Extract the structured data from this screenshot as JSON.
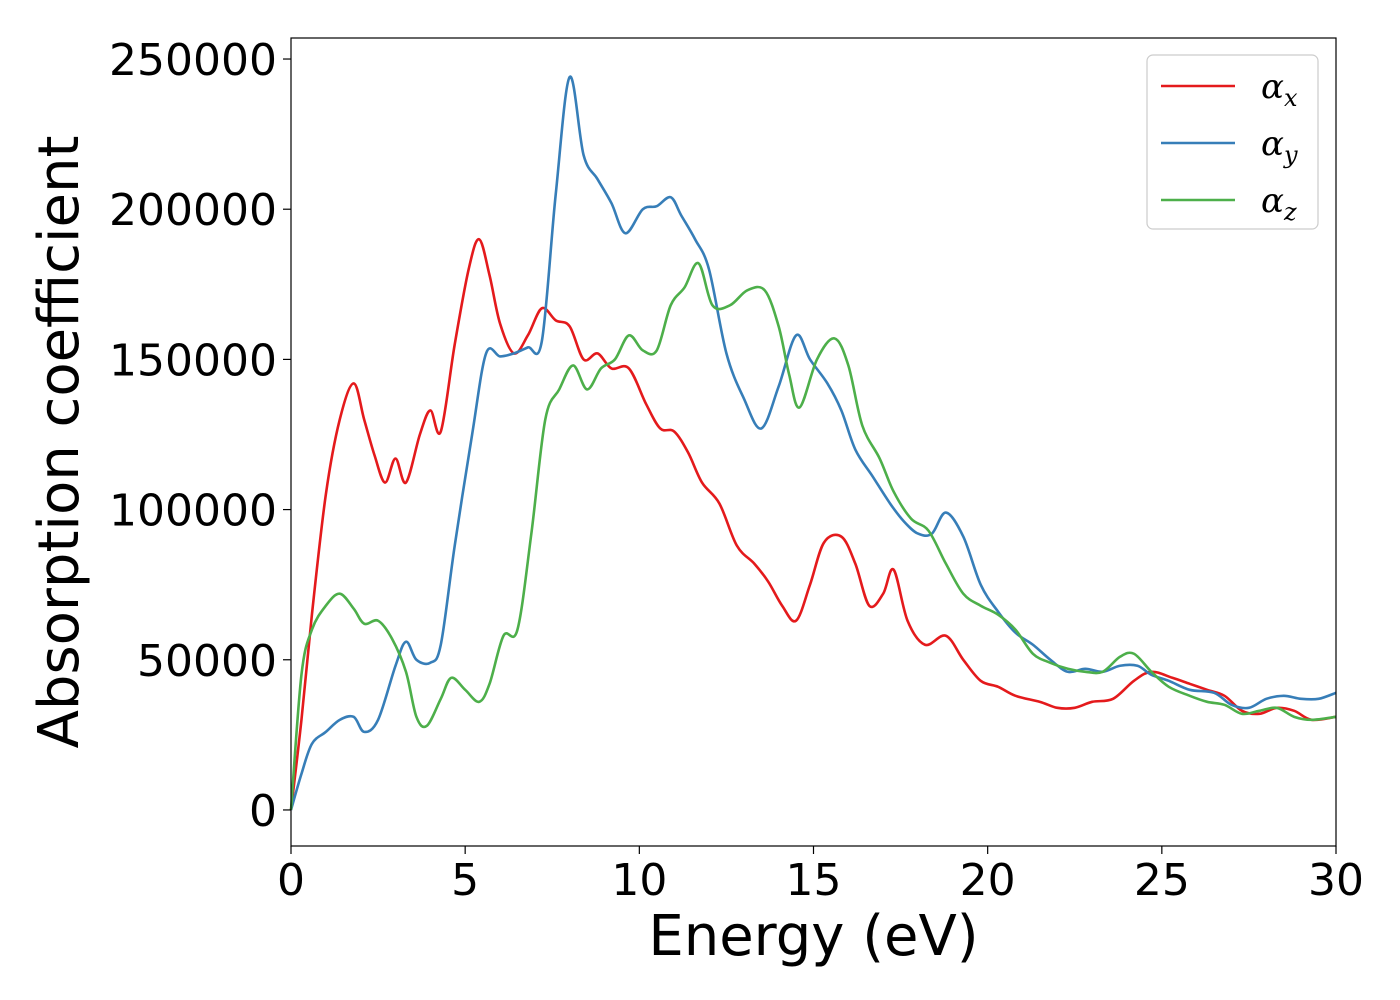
{
  "chart_data": {
    "type": "line",
    "title": "",
    "xlabel": "Energy (eV)",
    "ylabel": "Absorption coefficient",
    "xlim": [
      0,
      30
    ],
    "ylim": [
      -12000,
      257000
    ],
    "grid": false,
    "legend_position": "top-right",
    "x_ticks": [
      "0",
      "5",
      "10",
      "15",
      "20",
      "25",
      "30"
    ],
    "y_ticks": [
      "0",
      "50000",
      "100000",
      "150000",
      "200000",
      "250000"
    ],
    "series": [
      {
        "name": "α_x",
        "label_main": "α",
        "label_sub": "x",
        "color": "#e41a1c",
        "points": [
          [
            0,
            0
          ],
          [
            0.3,
            30000
          ],
          [
            0.6,
            65000
          ],
          [
            1.0,
            105000
          ],
          [
            1.4,
            130000
          ],
          [
            1.8,
            142000
          ],
          [
            2.1,
            130000
          ],
          [
            2.4,
            118000
          ],
          [
            2.7,
            109000
          ],
          [
            3.0,
            117000
          ],
          [
            3.3,
            109000
          ],
          [
            3.7,
            125000
          ],
          [
            4.0,
            133000
          ],
          [
            4.3,
            126000
          ],
          [
            4.7,
            155000
          ],
          [
            5.1,
            180000
          ],
          [
            5.4,
            190000
          ],
          [
            5.7,
            178000
          ],
          [
            6.0,
            162000
          ],
          [
            6.4,
            152000
          ],
          [
            6.8,
            158000
          ],
          [
            7.2,
            167000
          ],
          [
            7.6,
            163000
          ],
          [
            8.0,
            161000
          ],
          [
            8.4,
            150000
          ],
          [
            8.8,
            152000
          ],
          [
            9.2,
            147000
          ],
          [
            9.7,
            147000
          ],
          [
            10.2,
            135000
          ],
          [
            10.6,
            127000
          ],
          [
            11.0,
            126000
          ],
          [
            11.4,
            119000
          ],
          [
            11.8,
            109000
          ],
          [
            12.3,
            102000
          ],
          [
            12.8,
            88000
          ],
          [
            13.3,
            82000
          ],
          [
            13.7,
            76000
          ],
          [
            14.1,
            68000
          ],
          [
            14.5,
            63000
          ],
          [
            14.9,
            75000
          ],
          [
            15.3,
            89000
          ],
          [
            15.8,
            91000
          ],
          [
            16.2,
            82000
          ],
          [
            16.6,
            68000
          ],
          [
            17.0,
            72000
          ],
          [
            17.3,
            80000
          ],
          [
            17.7,
            63000
          ],
          [
            18.2,
            55000
          ],
          [
            18.8,
            58000
          ],
          [
            19.3,
            50000
          ],
          [
            19.8,
            43000
          ],
          [
            20.3,
            41000
          ],
          [
            20.8,
            38000
          ],
          [
            21.5,
            36000
          ],
          [
            22.0,
            34000
          ],
          [
            22.5,
            34000
          ],
          [
            23.0,
            36000
          ],
          [
            23.6,
            37000
          ],
          [
            24.2,
            43000
          ],
          [
            24.7,
            46000
          ],
          [
            25.3,
            44000
          ],
          [
            25.8,
            42000
          ],
          [
            26.3,
            40000
          ],
          [
            26.8,
            38000
          ],
          [
            27.3,
            33000
          ],
          [
            27.8,
            32000
          ],
          [
            28.3,
            34000
          ],
          [
            28.8,
            33000
          ],
          [
            29.3,
            30000
          ],
          [
            30.0,
            31000
          ]
        ]
      },
      {
        "name": "α_y",
        "label_main": "α",
        "label_sub": "y",
        "color": "#377eb8",
        "points": [
          [
            0,
            0
          ],
          [
            0.3,
            12000
          ],
          [
            0.6,
            22000
          ],
          [
            1.0,
            26000
          ],
          [
            1.4,
            30000
          ],
          [
            1.8,
            31000
          ],
          [
            2.1,
            26000
          ],
          [
            2.5,
            30000
          ],
          [
            3.0,
            48000
          ],
          [
            3.3,
            56000
          ],
          [
            3.6,
            50000
          ],
          [
            4.0,
            49000
          ],
          [
            4.3,
            55000
          ],
          [
            4.7,
            88000
          ],
          [
            5.2,
            125000
          ],
          [
            5.6,
            152000
          ],
          [
            6.0,
            151000
          ],
          [
            6.4,
            152000
          ],
          [
            6.8,
            154000
          ],
          [
            7.2,
            156000
          ],
          [
            7.6,
            205000
          ],
          [
            8.0,
            244000
          ],
          [
            8.4,
            218000
          ],
          [
            8.8,
            210000
          ],
          [
            9.2,
            202000
          ],
          [
            9.6,
            192000
          ],
          [
            10.1,
            200000
          ],
          [
            10.5,
            201000
          ],
          [
            10.9,
            204000
          ],
          [
            11.2,
            198000
          ],
          [
            11.6,
            190000
          ],
          [
            12.0,
            180000
          ],
          [
            12.5,
            152000
          ],
          [
            13.0,
            137000
          ],
          [
            13.5,
            127000
          ],
          [
            14.0,
            141000
          ],
          [
            14.5,
            158000
          ],
          [
            14.9,
            150000
          ],
          [
            15.4,
            142000
          ],
          [
            15.8,
            133000
          ],
          [
            16.2,
            120000
          ],
          [
            16.7,
            111000
          ],
          [
            17.2,
            102000
          ],
          [
            17.6,
            96000
          ],
          [
            18.0,
            92000
          ],
          [
            18.4,
            92000
          ],
          [
            18.8,
            99000
          ],
          [
            19.3,
            91000
          ],
          [
            19.8,
            75000
          ],
          [
            20.3,
            66000
          ],
          [
            20.8,
            59000
          ],
          [
            21.3,
            55000
          ],
          [
            21.8,
            50000
          ],
          [
            22.3,
            46000
          ],
          [
            22.8,
            47000
          ],
          [
            23.3,
            46000
          ],
          [
            23.8,
            48000
          ],
          [
            24.3,
            48000
          ],
          [
            24.7,
            45000
          ],
          [
            25.2,
            43000
          ],
          [
            25.8,
            40000
          ],
          [
            26.5,
            39000
          ],
          [
            27.0,
            35000
          ],
          [
            27.5,
            34000
          ],
          [
            28.0,
            37000
          ],
          [
            28.5,
            38000
          ],
          [
            29.0,
            37000
          ],
          [
            29.5,
            37000
          ],
          [
            30.0,
            39000
          ]
        ]
      },
      {
        "name": "α_z",
        "label_main": "α",
        "label_sub": "z",
        "color": "#4daf4a",
        "points": [
          [
            0,
            0
          ],
          [
            0.3,
            45000
          ],
          [
            0.6,
            60000
          ],
          [
            1.0,
            68000
          ],
          [
            1.4,
            72000
          ],
          [
            1.8,
            67000
          ],
          [
            2.1,
            62000
          ],
          [
            2.5,
            63000
          ],
          [
            2.9,
            57000
          ],
          [
            3.3,
            46000
          ],
          [
            3.6,
            31000
          ],
          [
            3.9,
            28000
          ],
          [
            4.3,
            37000
          ],
          [
            4.6,
            44000
          ],
          [
            5.0,
            40000
          ],
          [
            5.4,
            36000
          ],
          [
            5.7,
            42000
          ],
          [
            6.1,
            58000
          ],
          [
            6.5,
            60000
          ],
          [
            6.9,
            92000
          ],
          [
            7.3,
            130000
          ],
          [
            7.7,
            140000
          ],
          [
            8.1,
            148000
          ],
          [
            8.5,
            140000
          ],
          [
            8.9,
            147000
          ],
          [
            9.3,
            150000
          ],
          [
            9.7,
            158000
          ],
          [
            10.1,
            153000
          ],
          [
            10.5,
            153000
          ],
          [
            10.9,
            168000
          ],
          [
            11.3,
            174000
          ],
          [
            11.7,
            182000
          ],
          [
            12.1,
            168000
          ],
          [
            12.6,
            168000
          ],
          [
            13.1,
            173000
          ],
          [
            13.6,
            173000
          ],
          [
            14.0,
            161000
          ],
          [
            14.3,
            145000
          ],
          [
            14.6,
            134000
          ],
          [
            15.1,
            150000
          ],
          [
            15.6,
            157000
          ],
          [
            16.0,
            148000
          ],
          [
            16.4,
            128000
          ],
          [
            16.9,
            117000
          ],
          [
            17.3,
            106000
          ],
          [
            17.8,
            97000
          ],
          [
            18.3,
            93000
          ],
          [
            18.8,
            82000
          ],
          [
            19.3,
            72000
          ],
          [
            19.8,
            68000
          ],
          [
            20.3,
            65000
          ],
          [
            20.8,
            60000
          ],
          [
            21.3,
            52000
          ],
          [
            21.8,
            49000
          ],
          [
            22.3,
            47000
          ],
          [
            22.8,
            46000
          ],
          [
            23.3,
            46000
          ],
          [
            23.8,
            51000
          ],
          [
            24.2,
            52000
          ],
          [
            24.7,
            46000
          ],
          [
            25.2,
            41000
          ],
          [
            25.8,
            38000
          ],
          [
            26.3,
            36000
          ],
          [
            26.8,
            35000
          ],
          [
            27.3,
            32000
          ],
          [
            27.8,
            33000
          ],
          [
            28.3,
            34000
          ],
          [
            28.8,
            31000
          ],
          [
            29.3,
            30000
          ],
          [
            30.0,
            31000
          ]
        ]
      }
    ]
  }
}
